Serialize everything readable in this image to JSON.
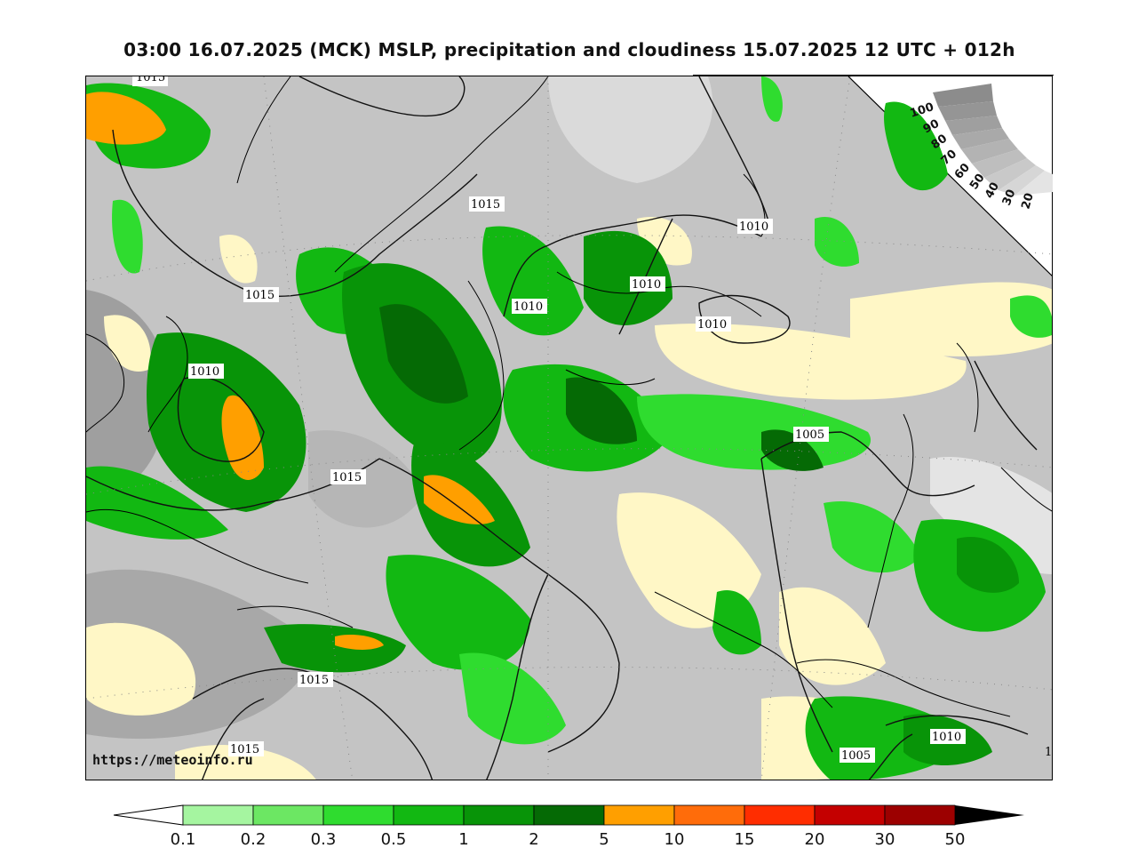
{
  "title": "03:00 16.07.2025 (MCK) MSLP, precipitation and cloudiness 15.07.2025 12 UTC + 012h",
  "watermark": "https://meteoinfo.ru",
  "isobar_labels": [
    "1015",
    "1015",
    "1010",
    "1010",
    "1010",
    "1010",
    "1010",
    "1015",
    "1005",
    "1015",
    "1015",
    "1005",
    "1010",
    "1"
  ],
  "cloudiness_scale": {
    "ticks": [
      "100",
      "90",
      "80",
      "70",
      "60",
      "50",
      "40",
      "30",
      "20"
    ]
  },
  "precipitation_colorbar": {
    "labels": [
      "0.1",
      "0.2",
      "0.3",
      "0.5",
      "1",
      "2",
      "5",
      "10",
      "15",
      "20",
      "30",
      "50"
    ],
    "colors": [
      "#ffffff",
      "#a5f5a0",
      "#6ce763",
      "#2fdc2f",
      "#12b812",
      "#089408",
      "#056a05",
      "#ff9f00",
      "#ff6c0a",
      "#ff2d00",
      "#c40000",
      "#9c0000",
      "#000000"
    ]
  },
  "colors": {
    "land_clear": "#fff7c6",
    "cloud_light": "#e2e2e2",
    "cloud_mid": "#bdbdbd",
    "cloud_dark": "#9a9a9a",
    "coastline": "#000000"
  }
}
